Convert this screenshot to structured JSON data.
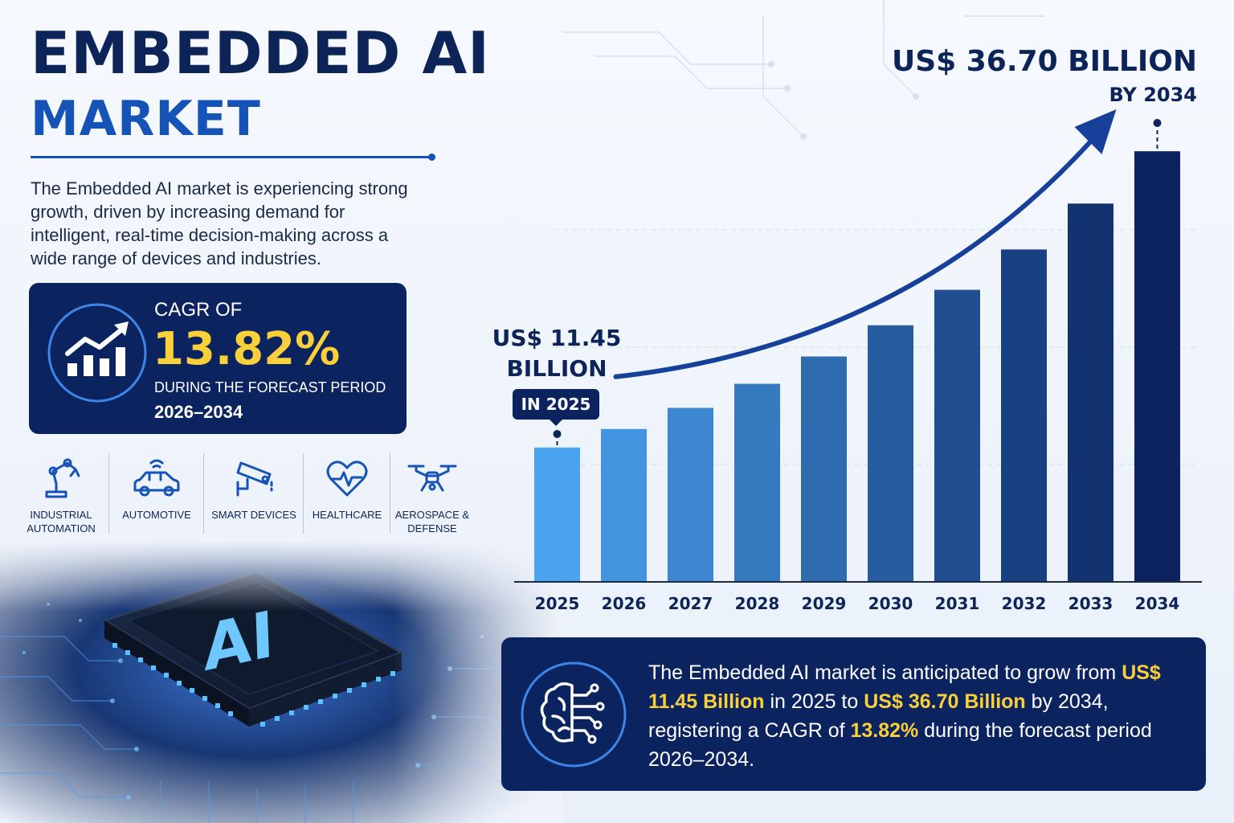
{
  "title": {
    "main": "EMBEDDED AI",
    "sub": "MARKET"
  },
  "intro": "The Embedded AI market is experiencing strong growth, driven by increasing demand for intelligent, real-time decision-making across a wide range of devices and industries.",
  "cagr": {
    "label": "CAGR OF",
    "value": "13.82%",
    "note": "DURING THE FORECAST PERIOD",
    "period": "2026–2034",
    "icon": "growth-chart-icon"
  },
  "industries": [
    {
      "label_1": "INDUSTRIAL",
      "label_2": "AUTOMATION",
      "icon": "robot-arm-icon"
    },
    {
      "label_1": "AUTOMOTIVE",
      "label_2": "",
      "icon": "connected-car-icon"
    },
    {
      "label_1": "SMART DEVICES",
      "label_2": "",
      "icon": "security-camera-icon"
    },
    {
      "label_1": "HEALTHCARE",
      "label_2": "",
      "icon": "heart-pulse-icon"
    },
    {
      "label_1": "AEROSPACE &",
      "label_2": "DEFENSE",
      "icon": "drone-icon"
    }
  ],
  "chip": {
    "label": "AI"
  },
  "callouts": {
    "end_value": "US$ 36.70 BILLION",
    "end_year": "BY 2034",
    "start_value_1": "US$ 11.45",
    "start_value_2": "BILLION",
    "start_year": "IN 2025"
  },
  "chart_data": {
    "type": "bar",
    "categories": [
      "2025",
      "2026",
      "2027",
      "2028",
      "2029",
      "2030",
      "2031",
      "2032",
      "2033",
      "2034"
    ],
    "values": [
      11.45,
      13.03,
      14.83,
      16.88,
      19.21,
      21.87,
      24.89,
      28.33,
      32.24,
      36.7
    ],
    "title": "",
    "xlabel": "",
    "ylabel": "",
    "ylim": [
      0,
      40
    ],
    "grid": true,
    "legend": "none",
    "colors": {
      "start": "#4aa3ef",
      "end": "#0b2460"
    },
    "trend_arrow": true
  },
  "summary": {
    "icon": "brain-circuit-icon",
    "p1": "The Embedded AI market is anticipated to grow from ",
    "v1": "US$ 11.45 Billion",
    "p2": " in 2025 to ",
    "v2": "US$ 36.70 Billion",
    "p3": " by 2034, registering a CAGR of ",
    "v3": "13.82%",
    "p4": " during the forecast period 2026–2034."
  },
  "colors": {
    "navy": "#0b2460",
    "accent_blue": "#1553b6",
    "highlight_yellow": "#f9cf3a"
  }
}
